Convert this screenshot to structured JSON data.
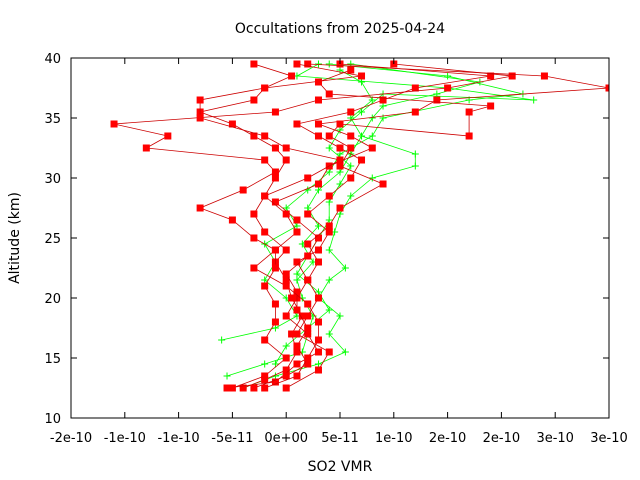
{
  "chart_data": {
    "type": "line",
    "title": "Occultations from 2025-04-24",
    "xlabel": "SO2 VMR",
    "ylabel": "Altitude (km)",
    "xlim": [
      -2e-10,
      3e-10
    ],
    "ylim": [
      10,
      40
    ],
    "x_tick_labels": [
      "-2e-10",
      "-1e-10",
      "-1e-10",
      "-5e-11",
      "0e+00",
      "5e-11",
      "1e-10",
      "2e-10",
      "2e-10",
      "3e-10",
      "3e-10"
    ],
    "x_tick_values": [
      -2e-10,
      -1.5e-10,
      -1e-10,
      -5e-11,
      0,
      5e-11,
      1e-10,
      1.5e-10,
      2e-10,
      2.5e-10,
      3e-10
    ],
    "y_tick_labels": [
      "10",
      "15",
      "20",
      "25",
      "30",
      "35",
      "40"
    ],
    "y_tick_values": [
      10,
      15,
      20,
      25,
      30,
      35,
      40
    ],
    "grid": false,
    "legend": "none",
    "colors": {
      "red": "#ff0000",
      "darkred": "#cc0000",
      "green": "#00ff00"
    },
    "series": [
      {
        "color": "#ff0000",
        "marker": "square",
        "points": [
          [
            -4e-11,
            12.5
          ],
          [
            -2e-11,
            13.2
          ],
          [
            0,
            14.0
          ],
          [
            1e-11,
            15.5
          ],
          [
            5e-12,
            17.0
          ],
          [
            1.5e-11,
            18.5
          ],
          [
            5e-12,
            20.0
          ],
          [
            0,
            21.5
          ],
          [
            -1e-11,
            23.0
          ],
          [
            0,
            24.0
          ],
          [
            -2e-11,
            25.5
          ],
          [
            -3e-11,
            27.0
          ],
          [
            -2e-11,
            28.5
          ],
          [
            -1e-11,
            30.0
          ],
          [
            0,
            31.5
          ],
          [
            -1e-11,
            32.5
          ],
          [
            -3e-11,
            33.5
          ],
          [
            -5e-11,
            34.5
          ],
          [
            -8e-11,
            35.5
          ],
          [
            -3e-11,
            36.5
          ],
          [
            -2e-11,
            37.5
          ],
          [
            5e-12,
            38.5
          ],
          [
            -3e-11,
            39.5
          ]
        ]
      },
      {
        "color": "#ff0000",
        "marker": "square",
        "points": [
          [
            -5.5e-11,
            12.5
          ],
          [
            -1e-11,
            13.0
          ],
          [
            1e-11,
            14.5
          ],
          [
            3e-11,
            15.5
          ],
          [
            2e-11,
            17.0
          ],
          [
            0,
            18.5
          ],
          [
            1e-11,
            20.0
          ],
          [
            2e-11,
            21.5
          ],
          [
            1e-11,
            23.0
          ],
          [
            3e-11,
            24.0
          ],
          [
            4e-11,
            25.5
          ],
          [
            2e-11,
            27.0
          ],
          [
            4e-11,
            28.5
          ],
          [
            6e-11,
            30.0
          ],
          [
            7e-11,
            31.5
          ],
          [
            5e-11,
            32.5
          ],
          [
            3e-11,
            33.5
          ],
          [
            1e-11,
            34.5
          ],
          [
            6e-11,
            35.5
          ],
          [
            9e-11,
            36.5
          ],
          [
            1.2e-10,
            37.5
          ],
          [
            1.9e-10,
            38.5
          ],
          [
            5e-11,
            39.5
          ]
        ]
      },
      {
        "color": "#ff0000",
        "marker": "square",
        "points": [
          [
            -5e-11,
            12.5
          ],
          [
            -2e-11,
            13.5
          ],
          [
            0,
            15.0
          ],
          [
            -2e-11,
            16.5
          ],
          [
            -1e-11,
            18.0
          ],
          [
            -1e-11,
            19.5
          ],
          [
            -2e-11,
            21.0
          ],
          [
            -1e-11,
            22.5
          ],
          [
            -1e-11,
            24.0
          ],
          [
            -3e-11,
            25.0
          ],
          [
            -5e-11,
            26.5
          ],
          [
            -8e-11,
            27.5
          ],
          [
            -4e-11,
            29.0
          ],
          [
            -1e-11,
            30.5
          ],
          [
            -2e-11,
            31.5
          ],
          [
            -1.3e-10,
            32.5
          ],
          [
            -1.1e-10,
            33.5
          ],
          [
            -1.6e-10,
            34.5
          ],
          [
            -1e-11,
            35.5
          ],
          [
            3e-11,
            36.5
          ],
          [
            1.5e-10,
            37.5
          ],
          [
            2.1e-10,
            38.5
          ],
          [
            1e-10,
            39.5
          ]
        ]
      },
      {
        "color": "#ff0000",
        "marker": "square",
        "points": [
          [
            -3e-11,
            12.5
          ],
          [
            0,
            13.5
          ],
          [
            2e-11,
            14.5
          ],
          [
            1e-11,
            16.0
          ],
          [
            2e-11,
            17.5
          ],
          [
            1e-11,
            19.0
          ],
          [
            1e-11,
            20.5
          ],
          [
            0,
            22.0
          ],
          [
            2e-11,
            23.5
          ],
          [
            3e-11,
            25.0
          ],
          [
            1e-11,
            26.5
          ],
          [
            -1e-11,
            28.0
          ],
          [
            3e-11,
            29.5
          ],
          [
            4e-11,
            31.0
          ],
          [
            8e-11,
            32.5
          ],
          [
            6e-11,
            33.5
          ],
          [
            3e-11,
            34.5
          ],
          [
            1.2e-10,
            35.5
          ],
          [
            1.4e-10,
            36.5
          ],
          [
            3e-10,
            37.5
          ],
          [
            2.4e-10,
            38.5
          ],
          [
            2e-11,
            39.5
          ]
        ]
      },
      {
        "color": "#ff0000",
        "marker": "square",
        "points": [
          [
            -2e-11,
            12.5
          ],
          [
            1e-11,
            13.5
          ],
          [
            2e-11,
            15.0
          ],
          [
            3e-11,
            16.5
          ],
          [
            3e-11,
            18.0
          ],
          [
            2e-11,
            19.5
          ],
          [
            0,
            21.0
          ],
          [
            -3e-11,
            22.5
          ],
          [
            -1e-11,
            24.0
          ],
          [
            1e-11,
            25.5
          ],
          [
            0,
            27.0
          ],
          [
            -2e-11,
            28.5
          ],
          [
            2e-11,
            30.0
          ],
          [
            5e-11,
            31.5
          ],
          [
            0,
            32.5
          ],
          [
            -2e-11,
            33.5
          ],
          [
            -8e-11,
            35.0
          ],
          [
            -8e-11,
            36.5
          ],
          [
            -2e-11,
            37.5
          ],
          [
            7e-11,
            38.5
          ],
          [
            1e-11,
            39.5
          ]
        ]
      },
      {
        "color": "#ff0000",
        "marker": "square",
        "points": [
          [
            0,
            12.5
          ],
          [
            3e-11,
            14.0
          ],
          [
            4e-11,
            15.5
          ],
          [
            1e-11,
            17.0
          ],
          [
            2e-11,
            18.5
          ],
          [
            3e-11,
            20.0
          ],
          [
            2e-11,
            21.5
          ],
          [
            3e-11,
            23.0
          ],
          [
            2e-11,
            24.5
          ],
          [
            4e-11,
            26.0
          ],
          [
            5e-11,
            27.5
          ],
          [
            9e-11,
            29.5
          ],
          [
            5e-11,
            31.0
          ],
          [
            6e-11,
            32.5
          ],
          [
            4e-11,
            33.5
          ],
          [
            5e-11,
            34.5
          ],
          [
            1.7e-10,
            33.5
          ],
          [
            1.7e-10,
            35.5
          ],
          [
            1.9e-10,
            36.0
          ],
          [
            4e-11,
            37.0
          ],
          [
            3e-11,
            38.0
          ],
          [
            6e-11,
            39.0
          ]
        ]
      },
      {
        "color": "#00ff00",
        "marker": "plus",
        "points": [
          [
            -5.5e-11,
            13.5
          ],
          [
            -2e-11,
            14.5
          ],
          [
            1.5e-11,
            15.5
          ],
          [
            2e-11,
            17.0
          ],
          [
            2.5e-11,
            18.5
          ],
          [
            1.5e-11,
            20.0
          ],
          [
            1e-11,
            21.5
          ],
          [
            2.5e-11,
            23.0
          ],
          [
            1.5e-11,
            24.5
          ],
          [
            3e-11,
            26.0
          ],
          [
            2e-11,
            27.5
          ],
          [
            3e-11,
            29.0
          ],
          [
            5e-11,
            30.5
          ],
          [
            6e-11,
            32.0
          ],
          [
            7e-11,
            33.5
          ],
          [
            8e-11,
            35.0
          ],
          [
            9e-11,
            36.0
          ],
          [
            1.4e-10,
            37.0
          ],
          [
            1.8e-10,
            38.0
          ],
          [
            6e-11,
            39.5
          ]
        ]
      },
      {
        "color": "#00ff00",
        "marker": "plus",
        "points": [
          [
            -6e-11,
            16.5
          ],
          [
            -1e-11,
            17.5
          ],
          [
            1e-11,
            18.5
          ],
          [
            0,
            20.0
          ],
          [
            -2e-11,
            21.5
          ],
          [
            -1e-11,
            23.0
          ],
          [
            -2e-11,
            24.5
          ],
          [
            1e-11,
            26.0
          ],
          [
            0,
            27.5
          ],
          [
            2e-11,
            29.0
          ],
          [
            4e-11,
            30.5
          ],
          [
            5e-11,
            32.0
          ],
          [
            8e-11,
            33.5
          ],
          [
            9e-11,
            35.0
          ],
          [
            1.7e-10,
            36.5
          ],
          [
            2.2e-10,
            37.0
          ],
          [
            1.5e-10,
            38.5
          ],
          [
            4e-11,
            39.5
          ]
        ]
      },
      {
        "color": "#00ff00",
        "marker": "plus",
        "points": [
          [
            -4e-11,
            12.5
          ],
          [
            -1e-11,
            13.5
          ],
          [
            3e-11,
            14.5
          ],
          [
            5.5e-11,
            15.5
          ],
          [
            4e-11,
            17.0
          ],
          [
            5e-11,
            18.5
          ],
          [
            3e-11,
            20.0
          ],
          [
            4e-11,
            21.5
          ],
          [
            5.5e-11,
            22.5
          ],
          [
            4e-11,
            24.0
          ],
          [
            4.5e-11,
            25.5
          ],
          [
            5e-11,
            27.0
          ],
          [
            6e-11,
            28.5
          ],
          [
            8e-11,
            30.0
          ],
          [
            1.2e-10,
            31.0
          ],
          [
            1.2e-10,
            32.0
          ],
          [
            7e-11,
            33.5
          ],
          [
            6e-11,
            35.0
          ],
          [
            8e-11,
            36.5
          ],
          [
            7e-11,
            38.0
          ],
          [
            5e-11,
            39.0
          ]
        ]
      },
      {
        "color": "#00ff00",
        "marker": "plus",
        "points": [
          [
            -1e-11,
            14.5
          ],
          [
            0,
            16.0
          ],
          [
            2e-11,
            17.5
          ],
          [
            4e-11,
            19.0
          ],
          [
            3e-11,
            20.5
          ],
          [
            1e-11,
            22.0
          ],
          [
            2e-11,
            23.5
          ],
          [
            3e-11,
            25.0
          ],
          [
            4e-11,
            26.5
          ],
          [
            4e-11,
            28.0
          ],
          [
            5e-11,
            29.5
          ],
          [
            6e-11,
            31.0
          ],
          [
            4e-11,
            32.5
          ],
          [
            5e-11,
            34.0
          ],
          [
            7e-11,
            35.5
          ],
          [
            9e-11,
            37.0
          ],
          [
            2.3e-10,
            36.5
          ],
          [
            1.5e-10,
            37.5
          ],
          [
            1e-11,
            38.5
          ],
          [
            3e-11,
            39.5
          ]
        ]
      }
    ]
  }
}
